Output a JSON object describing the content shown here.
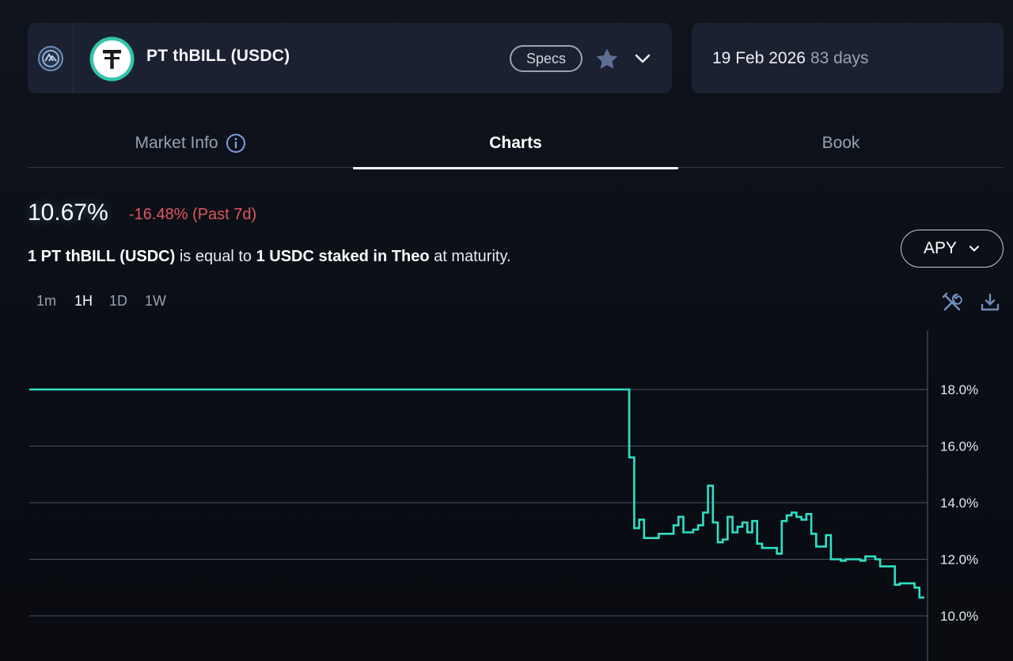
{
  "header": {
    "market_title": "PT thBILL (USDC)",
    "specs_label": "Specs",
    "maturity_date": "19 Feb 2026",
    "days_left": "83 days"
  },
  "tabs": [
    {
      "label": "Market Info",
      "active": false
    },
    {
      "label": "Charts",
      "active": true
    },
    {
      "label": "Book",
      "active": false
    }
  ],
  "summary": {
    "apy": "10.67%",
    "change": "-16.48% (Past 7d)",
    "desc_bold_1": "1 PT thBILL (USDC)",
    "desc_mid": " is equal to ",
    "desc_bold_2": "1 USDC staked in Theo",
    "desc_end": " at maturity."
  },
  "metric_select": {
    "label": "APY"
  },
  "intervals": [
    {
      "label": "1m",
      "active": false
    },
    {
      "label": "1H",
      "active": true
    },
    {
      "label": "1D",
      "active": false
    },
    {
      "label": "1W",
      "active": false
    }
  ],
  "colors": {
    "line": "#2ee0c4",
    "negative": "#e0565e",
    "card": "#1b2130",
    "grid": "#4a5262"
  },
  "icons": {
    "protocol": "pendle-logo-icon",
    "token": "tether-logo-icon",
    "favorite": "star-icon",
    "expand": "chevron-down-icon",
    "info": "info-icon",
    "tools": "tools-icon",
    "download": "download-icon"
  },
  "chart_data": {
    "type": "line",
    "step": true,
    "title": "",
    "xlabel": "",
    "ylabel": "",
    "ylim": [
      9.6,
      19.0
    ],
    "y_ticks": [
      "10.0%",
      "12.0%",
      "14.0%",
      "16.0%",
      "18.0%"
    ],
    "y_tick_values": [
      10,
      12,
      14,
      16,
      18
    ],
    "grid": true,
    "y_axis_side": "right",
    "series": [
      {
        "values": [
          18.0,
          18.0,
          18.0,
          18.0,
          18.0,
          18.0,
          18.0,
          18.0,
          18.0,
          18.0,
          18.0,
          18.0,
          18.0,
          18.0,
          18.0,
          18.0,
          18.0,
          18.0,
          18.0,
          18.0,
          18.0,
          18.0,
          18.0,
          18.0,
          18.0,
          18.0,
          18.0,
          18.0,
          18.0,
          18.0,
          18.0,
          18.0,
          18.0,
          18.0,
          18.0,
          18.0,
          18.0,
          18.0,
          18.0,
          18.0,
          18.0,
          18.0,
          18.0,
          18.0,
          18.0,
          18.0,
          18.0,
          18.0,
          18.0,
          18.0,
          18.0,
          18.0,
          18.0,
          18.0,
          18.0,
          18.0,
          18.0,
          18.0,
          18.0,
          18.0,
          18.0,
          18.0,
          18.0,
          18.0,
          18.0,
          18.0,
          18.0,
          18.0,
          18.0,
          18.0,
          18.0,
          18.0,
          18.0,
          18.0,
          18.0,
          18.0,
          18.0,
          18.0,
          18.0,
          18.0,
          18.0,
          18.0,
          18.0,
          18.0,
          18.0,
          18.0,
          18.0,
          18.0,
          18.0,
          18.0,
          18.0,
          18.0,
          18.0,
          18.0,
          18.0,
          18.0,
          18.0,
          18.0,
          18.0,
          18.0,
          18.0,
          18.0,
          18.0,
          18.0,
          18.0,
          18.0,
          18.0,
          18.0,
          18.0,
          18.0,
          18.0,
          18.0,
          18.0,
          18.0,
          18.0,
          18.0,
          18.0,
          18.0,
          18.0,
          18.0,
          18.0,
          18.0,
          15.6,
          13.1,
          13.4,
          12.75,
          12.75,
          12.75,
          12.9,
          12.9,
          12.9,
          13.2,
          13.5,
          12.95,
          12.95,
          13.05,
          13.2,
          13.65,
          14.6,
          13.3,
          12.6,
          12.7,
          13.5,
          12.95,
          13.15,
          13.3,
          12.95,
          13.35,
          12.55,
          12.4,
          12.4,
          12.4,
          12.2,
          13.35,
          13.55,
          13.65,
          13.5,
          13.4,
          13.6,
          12.9,
          12.45,
          12.45,
          12.85,
          12.0,
          12.0,
          11.95,
          12.0,
          12.0,
          12.0,
          11.95,
          12.1,
          12.1,
          12.0,
          11.75,
          11.75,
          11.75,
          11.1,
          11.15,
          11.15,
          11.15,
          11.0,
          10.65,
          10.65
        ]
      }
    ]
  }
}
